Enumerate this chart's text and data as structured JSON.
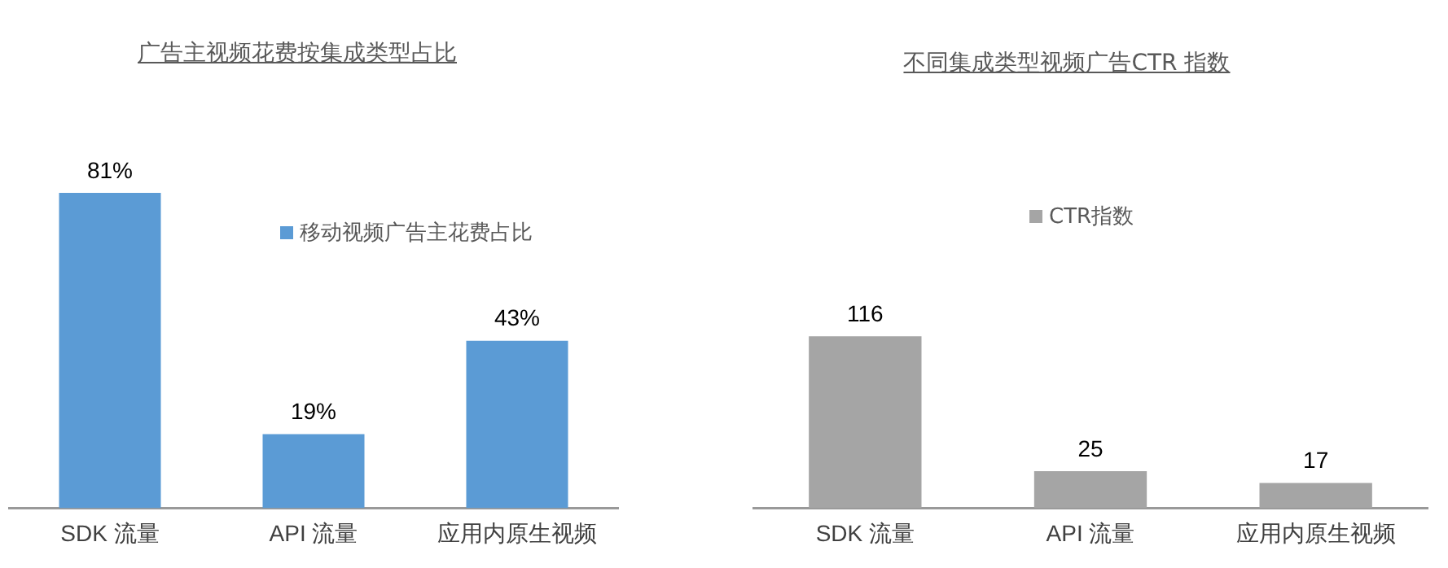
{
  "chart_data": [
    {
      "type": "bar",
      "title": "广告主视频花费按集成类型占比",
      "categories": [
        "SDK 流量",
        "API 流量",
        "应用内原生视频"
      ],
      "series": [
        {
          "name": "移动视频广告主花费占比",
          "color": "#5b9bd5",
          "values": [
            81,
            19,
            43
          ],
          "value_labels": [
            "81%",
            "19%",
            "43%"
          ]
        }
      ],
      "legend": "right",
      "grid": false
    },
    {
      "type": "bar",
      "title": "不同集成类型视频广告CTR 指数",
      "categories": [
        "SDK 流量",
        "API 流量",
        "应用内原生视频"
      ],
      "series": [
        {
          "name": "CTR指数",
          "color": "#a5a5a5",
          "values": [
            116,
            25,
            17
          ]
        }
      ],
      "data_labels": true,
      "legend": "top",
      "grid": false
    }
  ]
}
